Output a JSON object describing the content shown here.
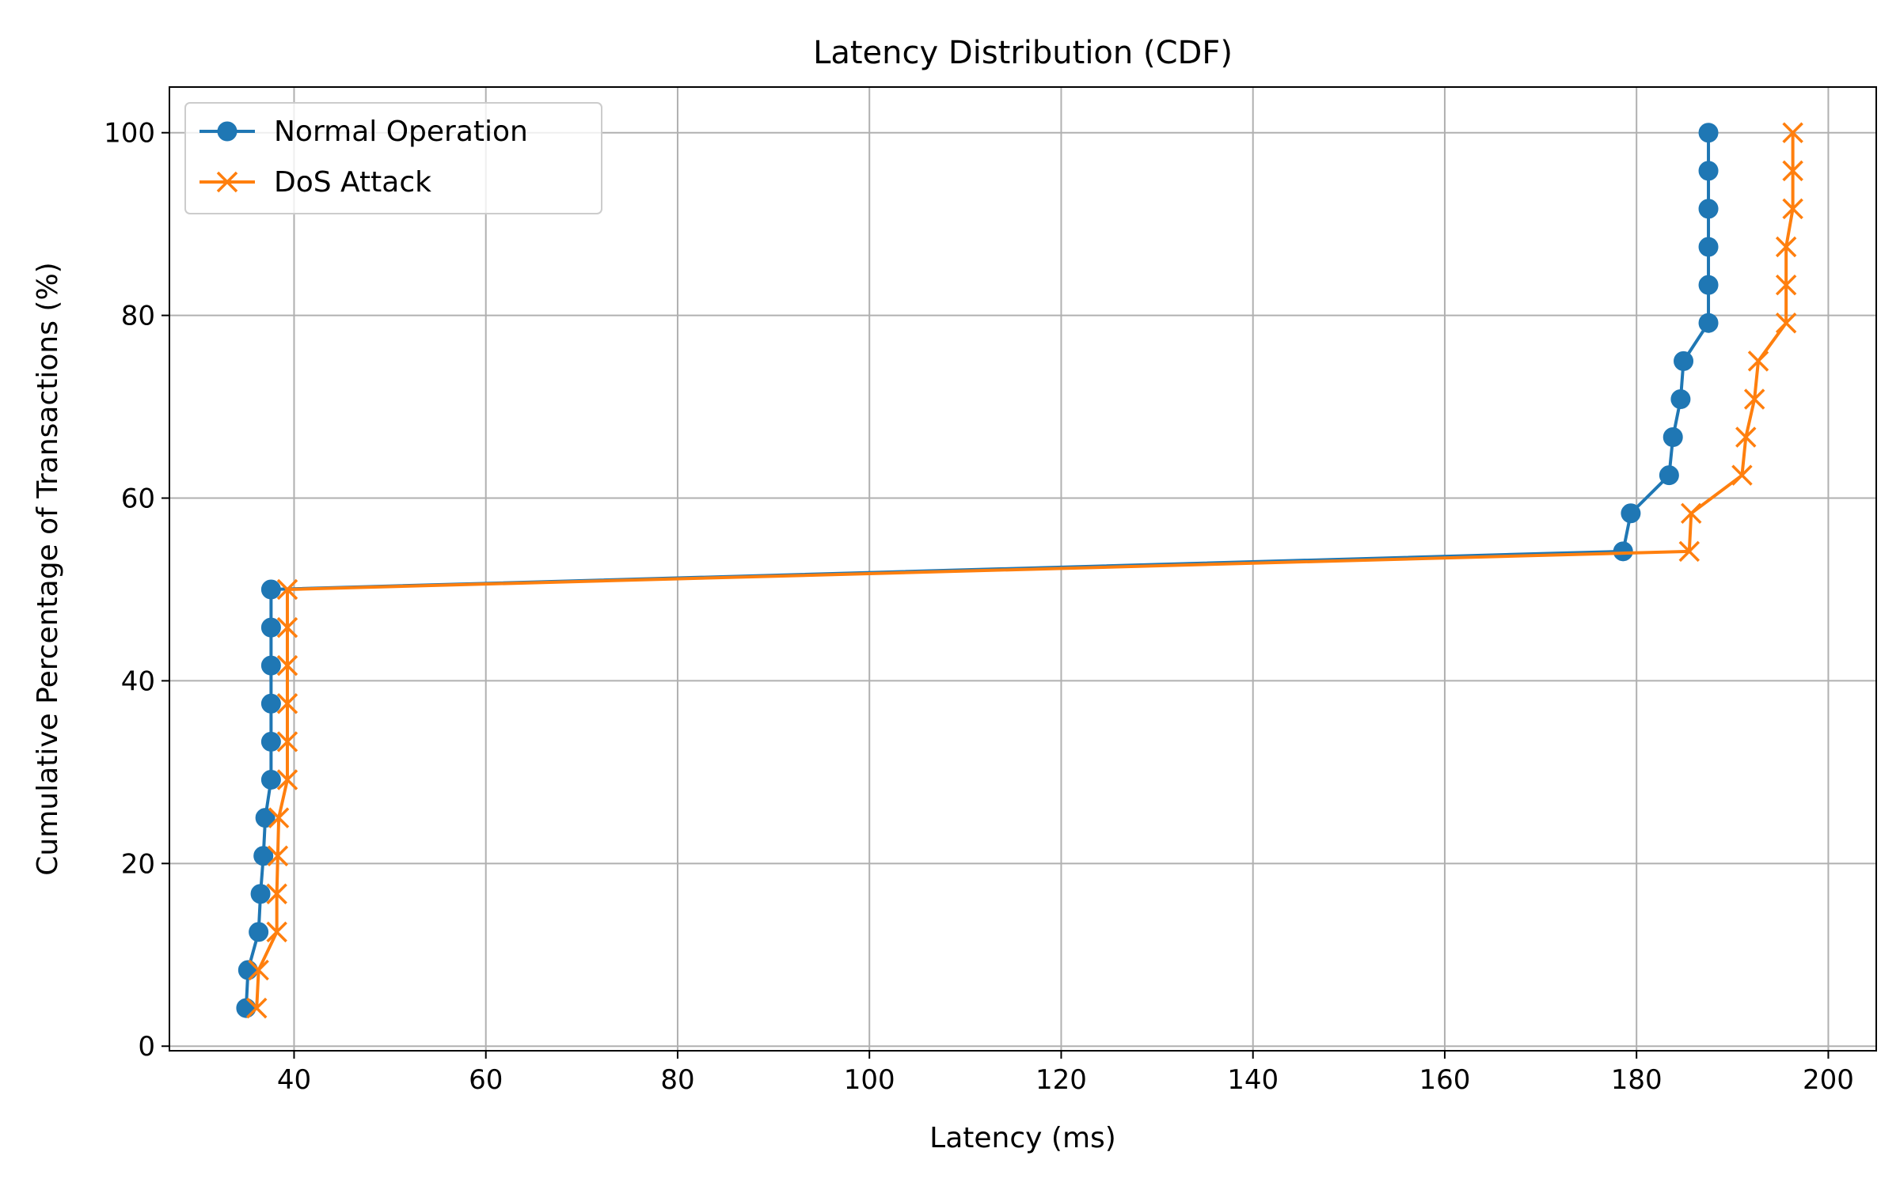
{
  "chart_data": {
    "type": "line",
    "title": "Latency Distribution (CDF)",
    "xlabel": "Latency (ms)",
    "ylabel": "Cumulative Percentage of Transactions (%)",
    "xlim": [
      27,
      205
    ],
    "ylim": [
      -0.5,
      105
    ],
    "xticks": [
      40,
      60,
      80,
      100,
      120,
      140,
      160,
      180,
      200
    ],
    "yticks": [
      0,
      20,
      40,
      60,
      80,
      100
    ],
    "grid": true,
    "legend_position": "top-left",
    "series": [
      {
        "name": "Normal Operation",
        "color": "#1f77b4",
        "marker": "circle",
        "x": [
          35.0,
          35.2,
          36.3,
          36.5,
          36.8,
          37.0,
          37.6,
          37.6,
          37.6,
          37.6,
          37.6,
          37.6,
          178.6,
          179.4,
          183.4,
          183.8,
          184.6,
          184.9,
          187.5,
          187.5,
          187.5,
          187.5,
          187.5,
          187.5
        ],
        "y": [
          4.17,
          8.33,
          12.5,
          16.67,
          20.83,
          25.0,
          29.17,
          33.33,
          37.5,
          41.67,
          45.83,
          50.0,
          54.17,
          58.33,
          62.5,
          66.67,
          70.83,
          75.0,
          79.17,
          83.33,
          87.5,
          91.67,
          95.83,
          100.0
        ]
      },
      {
        "name": "DoS Attack",
        "color": "#ff7f0e",
        "marker": "x",
        "x": [
          36.1,
          36.3,
          38.2,
          38.2,
          38.3,
          38.4,
          39.3,
          39.3,
          39.3,
          39.3,
          39.3,
          39.3,
          185.5,
          185.7,
          191.0,
          191.4,
          192.3,
          192.7,
          195.6,
          195.6,
          195.6,
          196.3,
          196.3,
          196.3
        ],
        "y": [
          4.17,
          8.33,
          12.5,
          16.67,
          20.83,
          25.0,
          29.17,
          33.33,
          37.5,
          41.67,
          45.83,
          50.0,
          54.17,
          58.33,
          62.5,
          66.67,
          70.83,
          75.0,
          79.17,
          83.33,
          87.5,
          91.67,
          95.83,
          100.0
        ]
      }
    ]
  }
}
